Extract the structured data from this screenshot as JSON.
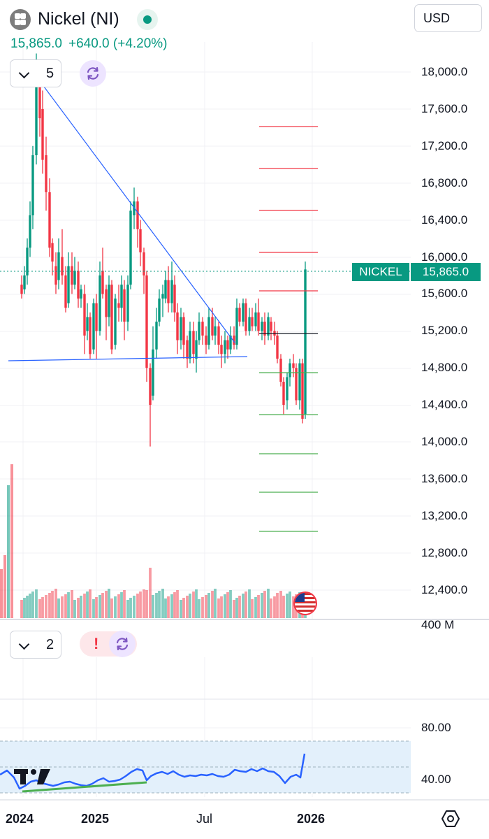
{
  "header": {
    "title": "Nickel (NI)",
    "price": "15,865.0",
    "change": "+640.0 (+4.20%)",
    "currency": "USD",
    "logo_icon": "commodity-dots-icon",
    "market_status_icon": "market-open-dot-icon"
  },
  "main_pane": {
    "indicator_count": "5",
    "price_tag_label": "NICKEL",
    "price_tag_value": "15,865.0",
    "y_axis_labels": [
      "18,000.0",
      "17,600.0",
      "17,200.0",
      "16,800.0",
      "16,400.0",
      "16,000.0",
      "15,600.0",
      "15,200.0",
      "14,800.0",
      "14,400.0",
      "14,000.0",
      "13,600.0",
      "13,200.0",
      "12,800.0",
      "12,400.0"
    ],
    "flag_icon": "us-flag-icon"
  },
  "volume_pane": {
    "axis_label": "400 M",
    "indicator_count": "2"
  },
  "rsi_pane": {
    "y_axis_labels": [
      "80.00",
      "40.00"
    ]
  },
  "x_axis": {
    "labels": [
      "2024",
      "2025",
      "Jul",
      "2026"
    ]
  },
  "colors": {
    "up": "#089981",
    "down": "#f23645",
    "trendline": "#2962ff",
    "rsi": "#2962ff",
    "rsi_band": "#e3f0fb"
  },
  "icons": {
    "chevron": "chevron-down-icon",
    "refresh": "refresh-icon",
    "alert": "alert-icon",
    "settings": "settings-hexagon-icon",
    "brand": "tradingview-logo-icon"
  }
}
